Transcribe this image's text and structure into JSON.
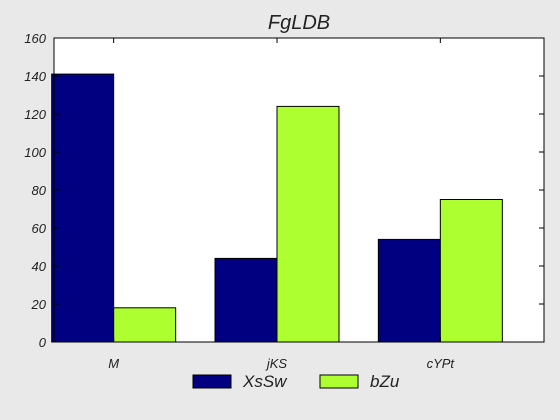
{
  "chart_data": {
    "type": "bar",
    "title": "FgLDB",
    "xlabel": "",
    "ylabel": "",
    "categories": [
      "M",
      "jKS",
      "cYPt"
    ],
    "series": [
      {
        "name": "XsSw",
        "values": [
          141,
          44,
          54
        ],
        "color": "#000080"
      },
      {
        "name": "bZu",
        "values": [
          18,
          124,
          75
        ],
        "color": "#adff2f"
      }
    ],
    "ylim": [
      0,
      160
    ],
    "yticks": [
      0,
      20,
      40,
      60,
      80,
      100,
      120,
      140,
      160
    ],
    "grid": false,
    "legend_position": "bottom-center",
    "background": "#e9e9e9",
    "plot_background": "#ffffff"
  }
}
